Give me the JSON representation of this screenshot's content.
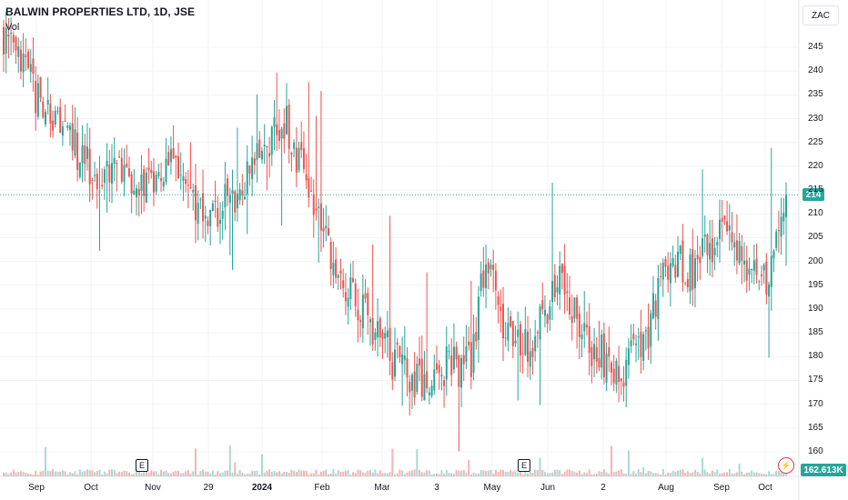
{
  "header": {
    "title": "BALWIN PROPERTIES LTD, 1D, JSE",
    "volume_label": "Vol",
    "currency": "ZAC"
  },
  "badges": {
    "last_price": "214",
    "last_volume": "162.613K",
    "event_marker": "E",
    "alert_icon": "lightning-icon"
  },
  "colors": {
    "up": "#26a69a",
    "down": "#ef5350",
    "up_volume": "#a8dad4",
    "down_volume": "#f6b4b3",
    "grid": "#f0f3fa",
    "last_price_line": "#26a69a"
  },
  "chart_data": {
    "type": "candlestick",
    "title": "BALWIN PROPERTIES LTD, 1D, JSE",
    "ylabel": "ZAC",
    "ylim": [
      155,
      255
    ],
    "grid": true,
    "y_ticks": [
      160,
      165,
      170,
      175,
      180,
      185,
      190,
      195,
      200,
      205,
      210,
      215,
      220,
      225,
      230,
      235,
      240,
      245
    ],
    "x_ticks": [
      "Sep",
      "Oct",
      "Nov",
      "29",
      "2024",
      "Feb",
      "Mar",
      "3",
      "May",
      "Jun",
      "2",
      "Aug",
      "Sep",
      "Oct"
    ],
    "x_tick_bold": [
      "2024"
    ],
    "last_price": 214,
    "last_volume": "162.613K",
    "close_trend": [
      [
        0,
        248
      ],
      [
        4,
        243
      ],
      [
        8,
        240
      ],
      [
        14,
        234
      ],
      [
        20,
        229
      ],
      [
        26,
        225
      ],
      [
        32,
        222
      ],
      [
        38,
        218
      ],
      [
        44,
        219
      ],
      [
        50,
        218
      ],
      [
        56,
        215
      ],
      [
        62,
        217
      ],
      [
        68,
        220
      ],
      [
        72,
        220
      ],
      [
        76,
        214
      ],
      [
        82,
        211
      ],
      [
        88,
        211
      ],
      [
        94,
        214
      ],
      [
        100,
        220
      ],
      [
        106,
        224
      ],
      [
        110,
        229
      ],
      [
        114,
        230
      ],
      [
        118,
        224
      ],
      [
        124,
        217
      ],
      [
        130,
        206
      ],
      [
        136,
        198
      ],
      [
        142,
        192
      ],
      [
        148,
        187
      ],
      [
        154,
        183
      ],
      [
        160,
        178
      ],
      [
        166,
        175
      ],
      [
        172,
        175
      ],
      [
        178,
        178
      ],
      [
        184,
        178
      ],
      [
        190,
        178
      ],
      [
        196,
        201
      ],
      [
        202,
        188
      ],
      [
        208,
        186
      ],
      [
        214,
        182
      ],
      [
        220,
        190
      ],
      [
        226,
        198
      ],
      [
        232,
        190
      ],
      [
        238,
        182
      ],
      [
        244,
        180
      ],
      [
        250,
        177
      ],
      [
        256,
        180
      ],
      [
        262,
        186
      ],
      [
        268,
        198
      ],
      [
        274,
        201
      ],
      [
        280,
        197
      ],
      [
        286,
        203
      ],
      [
        292,
        206
      ],
      [
        298,
        202
      ],
      [
        304,
        198
      ],
      [
        310,
        197
      ],
      [
        314,
        205
      ],
      [
        318,
        210
      ]
    ]
  }
}
